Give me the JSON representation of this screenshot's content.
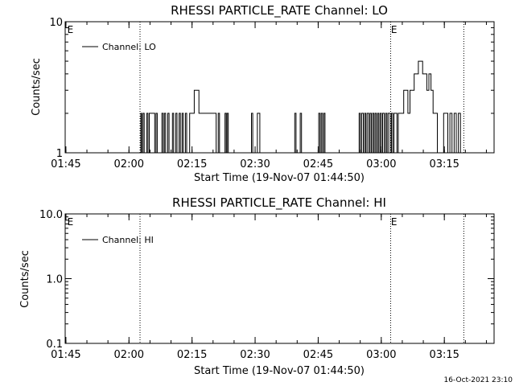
{
  "footer": {
    "timestamp": "16-Oct-2021 23:10"
  },
  "colors": {
    "ink": "#000000",
    "background": "#ffffff"
  },
  "chart_data": [
    {
      "type": "line",
      "title": "RHESSI PARTICLE_RATE Channel: LO",
      "xlabel": "Start Time (19-Nov-07 01:44:50)",
      "ylabel": "Counts/sec",
      "yscale": "log",
      "ylim": [
        1,
        10
      ],
      "ytick_values": [
        1,
        10
      ],
      "ytick_labels": [
        "1",
        "10"
      ],
      "xlim_minutes": [
        0,
        102
      ],
      "xtick_minutes": [
        0.17,
        15.17,
        30.17,
        45.17,
        60.17,
        75.17,
        90.17
      ],
      "xtick_labels": [
        "01:45",
        "02:00",
        "02:15",
        "02:30",
        "02:45",
        "03:00",
        "03:15"
      ],
      "legend": "Channel: LO",
      "event_markers": [
        {
          "label": "E",
          "minute": 0.3
        },
        {
          "label": "E",
          "minute": 77.3
        }
      ],
      "dotted_lines_minutes": [
        17.8,
        77.4,
        94.8
      ],
      "series": [
        {
          "name": "Channel: LO",
          "x": [
            0,
            17.8,
            18.0,
            18.2,
            18.5,
            18.8,
            19.1,
            19.4,
            19.7,
            20.0,
            21.0,
            21.3,
            21.6,
            21.9,
            23.0,
            23.3,
            23.6,
            23.9,
            24.4,
            24.7,
            25.5,
            25.8,
            26.3,
            26.6,
            27.1,
            27.4,
            27.8,
            28.1,
            28.6,
            28.9,
            29.6,
            29.9,
            30.4,
            30.7,
            31.8,
            32.1,
            32.6,
            32.9,
            33.6,
            33.9,
            34.6,
            34.9,
            35.6,
            35.9,
            36.4,
            36.7,
            38.0,
            38.3,
            38.5,
            38.8,
            44.0,
            44.3,
            44.6,
            44.9,
            45.4,
            45.7,
            46.0,
            46.3,
            54.3,
            54.6,
            54.9,
            55.2,
            55.6,
            55.9,
            56.2,
            56.5,
            60.0,
            60.3,
            60.6,
            60.9,
            61.2,
            61.5,
            61.8,
            62.1,
            69.6,
            69.9,
            70.2,
            70.5,
            70.9,
            71.2,
            71.5,
            71.8,
            72.2,
            72.5,
            72.8,
            73.1,
            73.4,
            73.7,
            74.0,
            74.3,
            74.6,
            74.9,
            75.2,
            75.5,
            75.9,
            76.2,
            76.5,
            76.8,
            77.3,
            77.6,
            77.9,
            78.2,
            78.6,
            78.9,
            79.2,
            79.5,
            79.8,
            80.2,
            80.5,
            81.0,
            81.5,
            82.0,
            82.5,
            83.0,
            83.5,
            84.0,
            84.5,
            85.0,
            85.5,
            86.0,
            86.5,
            87.0,
            87.5,
            88.0,
            88.5,
            89.0,
            89.5,
            90.0,
            90.5,
            91.0,
            91.5,
            92.0,
            92.5,
            93.0,
            93.5,
            94.0,
            94.5,
            102
          ],
          "values": [
            1,
            1,
            2,
            1,
            2,
            1,
            1,
            2,
            1,
            2,
            2,
            1,
            2,
            1,
            2,
            1,
            2,
            1,
            2,
            1,
            2,
            1,
            2,
            1,
            2,
            1,
            2,
            1,
            2,
            1,
            2,
            2,
            2,
            3,
            2,
            2,
            2,
            2,
            2,
            2,
            2,
            2,
            2,
            1,
            2,
            1,
            2,
            1,
            2,
            1,
            1,
            2,
            1,
            1,
            1,
            2,
            2,
            1,
            1,
            2,
            1,
            1,
            1,
            2,
            1,
            1,
            1,
            2,
            1,
            2,
            1,
            2,
            1,
            1,
            1,
            2,
            1,
            2,
            1,
            2,
            1,
            2,
            1,
            2,
            1,
            2,
            1,
            2,
            1,
            2,
            1,
            2,
            1,
            2,
            1,
            2,
            1,
            2,
            1,
            2,
            1,
            2,
            2,
            1,
            2,
            2,
            2,
            2,
            3,
            3,
            2,
            3,
            3,
            4,
            4,
            5,
            5,
            4,
            4,
            3,
            4,
            3,
            2,
            2,
            1,
            1,
            1,
            2,
            2,
            1,
            2,
            1,
            2,
            1,
            2,
            1,
            1,
            1
          ]
        }
      ]
    },
    {
      "type": "line",
      "title": "RHESSI PARTICLE_RATE Channel: HI",
      "xlabel": "Start Time (19-Nov-07 01:44:50)",
      "ylabel": "Counts/sec",
      "yscale": "log",
      "ylim": [
        0.1,
        10
      ],
      "ytick_values": [
        0.1,
        1,
        10
      ],
      "ytick_labels": [
        "0.1",
        "1.0",
        "10.0"
      ],
      "xlim_minutes": [
        0,
        102
      ],
      "xtick_minutes": [
        0.17,
        15.17,
        30.17,
        45.17,
        60.17,
        75.17,
        90.17
      ],
      "xtick_labels": [
        "01:45",
        "02:00",
        "02:15",
        "02:30",
        "02:45",
        "03:00",
        "03:15"
      ],
      "legend": "Channel: HI",
      "event_markers": [
        {
          "label": "E",
          "minute": 0.3
        },
        {
          "label": "E",
          "minute": 77.3
        }
      ],
      "dotted_lines_minutes": [
        17.8,
        77.4,
        94.8
      ],
      "series": [
        {
          "name": "Channel: HI",
          "x": [],
          "values": []
        }
      ]
    }
  ]
}
